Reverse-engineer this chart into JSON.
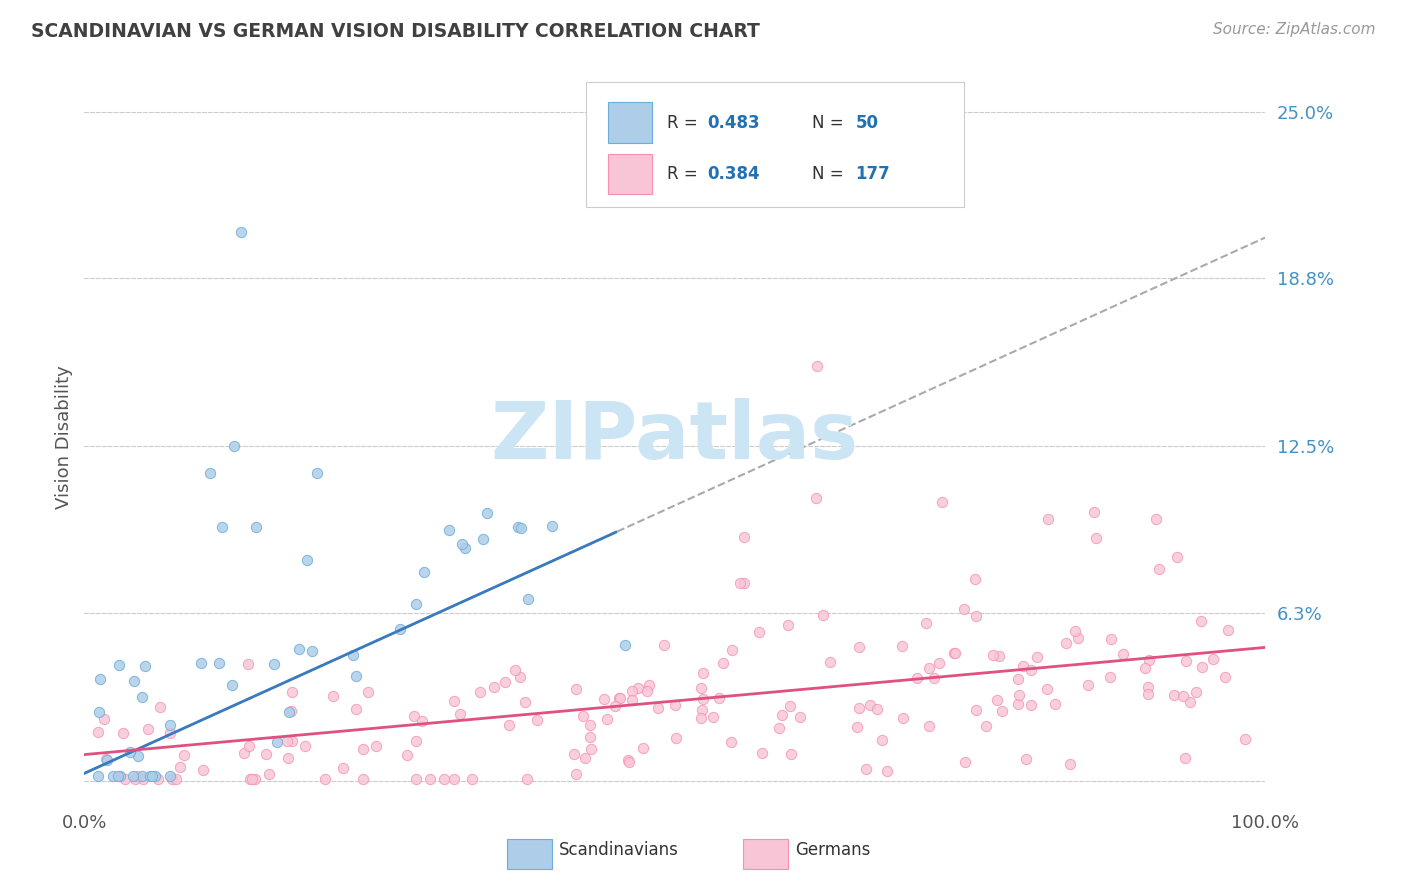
{
  "title": "SCANDINAVIAN VS GERMAN VISION DISABILITY CORRELATION CHART",
  "source": "Source: ZipAtlas.com",
  "ylabel": "Vision Disability",
  "yticks": [
    0.0,
    0.063,
    0.125,
    0.188,
    0.25
  ],
  "ytick_labels": [
    "",
    "6.3%",
    "12.5%",
    "18.8%",
    "25.0%"
  ],
  "xlim": [
    0.0,
    1.0
  ],
  "ylim": [
    -0.008,
    0.265
  ],
  "scandinavian_color": "#6baed6",
  "scandinavian_fill": "#aecde8",
  "german_color": "#f78fb3",
  "german_fill": "#f7c5d5",
  "reg_line_scan": "#3a7abf",
  "reg_line_ger": "#e05080",
  "dash_line_color": "#aaaaaa",
  "R_scan": 0.483,
  "N_scan": 50,
  "R_ger": 0.384,
  "N_ger": 177,
  "legend_text_color": "#2171b5",
  "background_color": "#ffffff",
  "grid_color": "#cccccc",
  "title_color": "#404040",
  "axis_tick_color": "#4292c6",
  "watermark_color": "#cce5f5"
}
